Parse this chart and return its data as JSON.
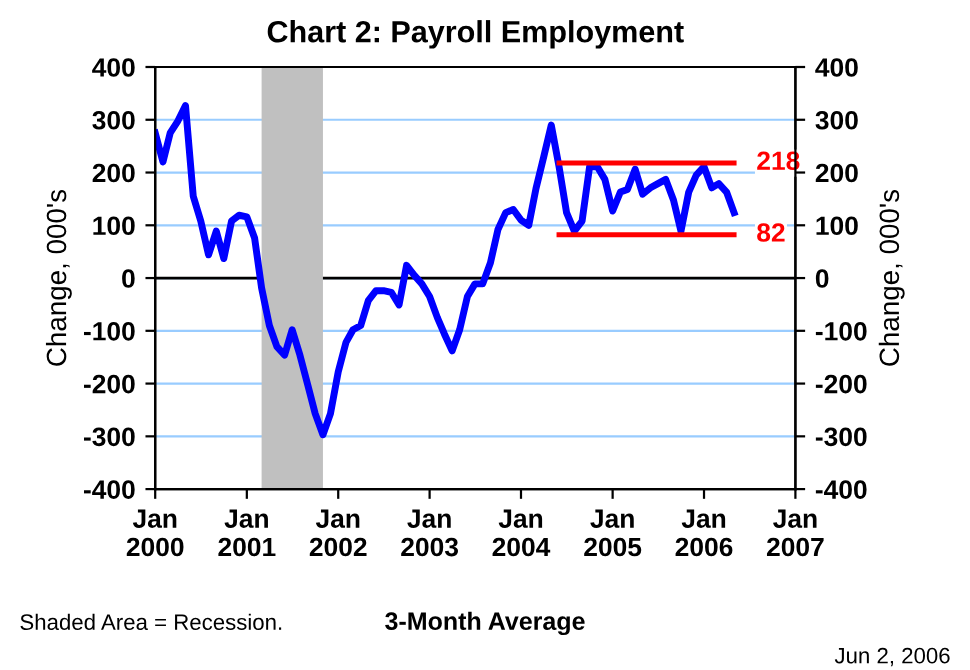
{
  "chart_data": {
    "type": "line",
    "title": "Chart 2: Payroll Employment",
    "ylabel": "Change, 000's",
    "y2label": "Change, 000's",
    "series": [
      {
        "color": "#0000ff",
        "x": [
          "2000-01",
          "2000-02",
          "2000-03",
          "2000-04",
          "2000-05",
          "2000-06",
          "2000-07",
          "2000-08",
          "2000-09",
          "2000-10",
          "2000-11",
          "2000-12",
          "2001-01",
          "2001-02",
          "2001-03",
          "2001-04",
          "2001-05",
          "2001-06",
          "2001-07",
          "2001-08",
          "2001-09",
          "2001-10",
          "2001-11",
          "2001-12",
          "2002-01",
          "2002-02",
          "2002-03",
          "2002-04",
          "2002-05",
          "2002-06",
          "2002-07",
          "2002-08",
          "2002-09",
          "2002-10",
          "2002-11",
          "2002-12",
          "2003-01",
          "2003-02",
          "2003-03",
          "2003-04",
          "2003-05",
          "2003-06",
          "2003-07",
          "2003-08",
          "2003-09",
          "2003-10",
          "2003-11",
          "2003-12",
          "2004-01",
          "2004-02",
          "2004-03",
          "2004-04",
          "2004-05",
          "2004-06",
          "2004-07",
          "2004-08",
          "2004-09",
          "2004-10",
          "2004-11",
          "2004-12",
          "2005-01",
          "2005-02",
          "2005-03",
          "2005-04",
          "2005-05",
          "2005-06",
          "2005-07",
          "2005-08",
          "2005-09",
          "2005-10",
          "2005-11",
          "2005-12",
          "2006-01",
          "2006-02",
          "2006-03",
          "2006-04",
          "2006-05"
        ],
        "values": [
          275,
          220,
          275,
          298,
          327,
          155,
          108,
          44,
          89,
          37,
          108,
          119,
          116,
          76,
          -19,
          -90,
          -130,
          -146,
          -98,
          -146,
          -202,
          -257,
          -297,
          -257,
          -178,
          -122,
          -98,
          -90,
          -43,
          -24,
          -24,
          -27,
          -51,
          24,
          5,
          -11,
          -35,
          -75,
          -106,
          -138,
          -98,
          -35,
          -11,
          -11,
          29,
          92,
          124,
          130,
          110,
          100,
          170,
          230,
          290,
          211,
          124,
          89,
          108,
          211,
          211,
          187,
          127,
          163,
          168,
          206,
          159,
          171,
          179,
          187,
          148,
          89,
          163,
          195,
          211,
          171,
          179,
          163,
          124
        ]
      },
      {
        "name": "218",
        "color": "#ff0000",
        "x": [
          "2004-06",
          "2006-05"
        ],
        "values": [
          218,
          218
        ]
      },
      {
        "name": "82",
        "color": "#ff0000",
        "x": [
          "2004-06",
          "2006-05"
        ],
        "values": [
          82,
          82
        ]
      }
    ],
    "xlim": [
      "2000-01",
      "2007-01"
    ],
    "xticks": [
      {
        "value": "2000-01",
        "label": "Jan\n2000"
      },
      {
        "value": "2001-01",
        "label": "Jan\n2001"
      },
      {
        "value": "2002-01",
        "label": "Jan\n2002"
      },
      {
        "value": "2003-01",
        "label": "Jan\n2003"
      },
      {
        "value": "2004-01",
        "label": "Jan\n2004"
      },
      {
        "value": "2005-01",
        "label": "Jan\n2005"
      },
      {
        "value": "2006-01",
        "label": "Jan\n2006"
      },
      {
        "value": "2007-01",
        "label": "Jan\n2007"
      }
    ],
    "ylim": [
      -400,
      400
    ],
    "yticks": [
      -400,
      -300,
      -200,
      -100,
      0,
      100,
      200,
      300,
      400
    ],
    "y2lim": [
      -400,
      400
    ],
    "y2ticks": [
      -400,
      -300,
      -200,
      -100,
      0,
      100,
      200,
      300,
      400
    ],
    "bands": [
      {
        "axis": "x",
        "from": "2001-03",
        "to": "2001-11",
        "color": "#c0c0c0"
      }
    ],
    "grid": "y",
    "annotations": [
      "Shaded Area = Recession.",
      "3-Month Average",
      "Jun 2, 2006"
    ]
  }
}
